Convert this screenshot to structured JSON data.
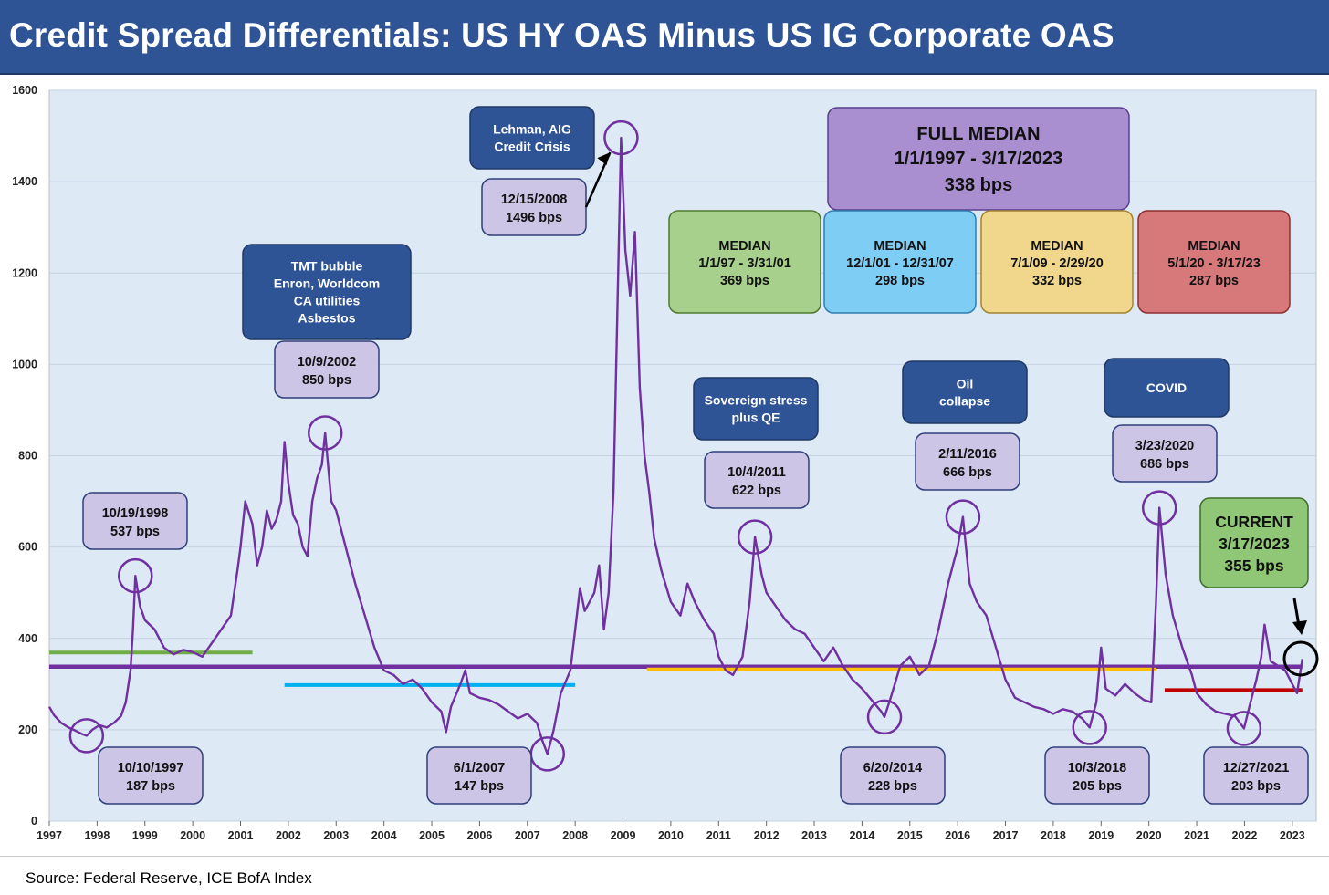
{
  "header": {
    "title": "Credit Spread Differentials: US HY OAS Minus US IG Corporate OAS"
  },
  "footer": {
    "source": "Source: Federal Reserve, ICE BofA Index"
  },
  "colors": {
    "series": "#7030a0",
    "plot_bg": "#dde9f5",
    "header_bg": "#2f5496",
    "median_full": "#7030a0",
    "median_1997_2001": "#70ad47",
    "median_2001_2007": "#00b0f0",
    "median_2009_2020": "#ffc000",
    "median_2020_2023": "#c00000"
  },
  "chart_data": {
    "type": "line",
    "title": "Credit Spread Differentials: US HY OAS Minus US IG Corporate OAS",
    "xlabel": "",
    "ylabel": "",
    "xlim": [
      1997,
      2023.5
    ],
    "ylim": [
      0,
      1600
    ],
    "yticks": [
      0,
      200,
      400,
      600,
      800,
      1000,
      1200,
      1400,
      1600
    ],
    "xticks": [
      1997,
      1998,
      1999,
      2000,
      2001,
      2002,
      2003,
      2004,
      2005,
      2006,
      2007,
      2008,
      2009,
      2010,
      2011,
      2012,
      2013,
      2014,
      2015,
      2016,
      2017,
      2018,
      2019,
      2020,
      2021,
      2022,
      2023
    ],
    "grid": true,
    "series": [
      {
        "name": "",
        "unit": "bps",
        "points": [
          [
            1997.0,
            250
          ],
          [
            1997.1,
            232
          ],
          [
            1997.25,
            215
          ],
          [
            1997.4,
            205
          ],
          [
            1997.55,
            198
          ],
          [
            1997.7,
            190
          ],
          [
            1997.78,
            187
          ],
          [
            1997.9,
            200
          ],
          [
            1998.05,
            210
          ],
          [
            1998.2,
            205
          ],
          [
            1998.35,
            215
          ],
          [
            1998.5,
            230
          ],
          [
            1998.6,
            260
          ],
          [
            1998.7,
            330
          ],
          [
            1998.75,
            420
          ],
          [
            1998.8,
            537
          ],
          [
            1998.9,
            470
          ],
          [
            1999.0,
            440
          ],
          [
            1999.2,
            420
          ],
          [
            1999.4,
            380
          ],
          [
            1999.6,
            365
          ],
          [
            1999.8,
            375
          ],
          [
            2000.0,
            370
          ],
          [
            2000.2,
            360
          ],
          [
            2000.4,
            390
          ],
          [
            2000.6,
            420
          ],
          [
            2000.8,
            450
          ],
          [
            2000.95,
            560
          ],
          [
            2001.0,
            600
          ],
          [
            2001.1,
            700
          ],
          [
            2001.25,
            650
          ],
          [
            2001.35,
            560
          ],
          [
            2001.45,
            600
          ],
          [
            2001.55,
            680
          ],
          [
            2001.65,
            640
          ],
          [
            2001.75,
            660
          ],
          [
            2001.85,
            700
          ],
          [
            2001.92,
            830
          ],
          [
            2002.0,
            740
          ],
          [
            2002.1,
            670
          ],
          [
            2002.2,
            650
          ],
          [
            2002.3,
            600
          ],
          [
            2002.4,
            580
          ],
          [
            2002.5,
            700
          ],
          [
            2002.6,
            750
          ],
          [
            2002.7,
            780
          ],
          [
            2002.77,
            850
          ],
          [
            2002.9,
            700
          ],
          [
            2003.0,
            680
          ],
          [
            2003.2,
            600
          ],
          [
            2003.4,
            520
          ],
          [
            2003.6,
            450
          ],
          [
            2003.8,
            380
          ],
          [
            2004.0,
            330
          ],
          [
            2004.2,
            320
          ],
          [
            2004.4,
            300
          ],
          [
            2004.6,
            310
          ],
          [
            2004.8,
            290
          ],
          [
            2005.0,
            260
          ],
          [
            2005.2,
            240
          ],
          [
            2005.3,
            195
          ],
          [
            2005.4,
            250
          ],
          [
            2005.6,
            300
          ],
          [
            2005.7,
            330
          ],
          [
            2005.8,
            280
          ],
          [
            2006.0,
            270
          ],
          [
            2006.2,
            265
          ],
          [
            2006.4,
            255
          ],
          [
            2006.6,
            240
          ],
          [
            2006.8,
            225
          ],
          [
            2007.0,
            235
          ],
          [
            2007.2,
            215
          ],
          [
            2007.3,
            180
          ],
          [
            2007.42,
            147
          ],
          [
            2007.55,
            200
          ],
          [
            2007.7,
            280
          ],
          [
            2007.9,
            330
          ],
          [
            2008.0,
            420
          ],
          [
            2008.1,
            510
          ],
          [
            2008.2,
            460
          ],
          [
            2008.3,
            480
          ],
          [
            2008.4,
            500
          ],
          [
            2008.5,
            560
          ],
          [
            2008.6,
            420
          ],
          [
            2008.7,
            500
          ],
          [
            2008.8,
            720
          ],
          [
            2008.88,
            1100
          ],
          [
            2008.96,
            1496
          ],
          [
            2009.05,
            1250
          ],
          [
            2009.15,
            1150
          ],
          [
            2009.25,
            1290
          ],
          [
            2009.35,
            950
          ],
          [
            2009.45,
            800
          ],
          [
            2009.55,
            720
          ],
          [
            2009.65,
            620
          ],
          [
            2009.8,
            550
          ],
          [
            2010.0,
            480
          ],
          [
            2010.2,
            450
          ],
          [
            2010.35,
            520
          ],
          [
            2010.5,
            480
          ],
          [
            2010.7,
            440
          ],
          [
            2010.9,
            410
          ],
          [
            2011.0,
            360
          ],
          [
            2011.15,
            330
          ],
          [
            2011.3,
            320
          ],
          [
            2011.5,
            360
          ],
          [
            2011.65,
            480
          ],
          [
            2011.76,
            622
          ],
          [
            2011.9,
            540
          ],
          [
            2012.0,
            500
          ],
          [
            2012.2,
            470
          ],
          [
            2012.4,
            440
          ],
          [
            2012.6,
            420
          ],
          [
            2012.8,
            410
          ],
          [
            2013.0,
            380
          ],
          [
            2013.2,
            350
          ],
          [
            2013.4,
            380
          ],
          [
            2013.6,
            340
          ],
          [
            2013.8,
            310
          ],
          [
            2014.0,
            290
          ],
          [
            2014.2,
            265
          ],
          [
            2014.4,
            240
          ],
          [
            2014.47,
            228
          ],
          [
            2014.6,
            270
          ],
          [
            2014.8,
            340
          ],
          [
            2015.0,
            360
          ],
          [
            2015.2,
            320
          ],
          [
            2015.4,
            340
          ],
          [
            2015.6,
            420
          ],
          [
            2015.8,
            520
          ],
          [
            2016.0,
            600
          ],
          [
            2016.11,
            666
          ],
          [
            2016.25,
            520
          ],
          [
            2016.4,
            480
          ],
          [
            2016.6,
            450
          ],
          [
            2016.8,
            380
          ],
          [
            2017.0,
            310
          ],
          [
            2017.2,
            270
          ],
          [
            2017.4,
            260
          ],
          [
            2017.6,
            250
          ],
          [
            2017.8,
            245
          ],
          [
            2018.0,
            235
          ],
          [
            2018.2,
            245
          ],
          [
            2018.4,
            240
          ],
          [
            2018.6,
            225
          ],
          [
            2018.76,
            205
          ],
          [
            2018.9,
            260
          ],
          [
            2019.0,
            380
          ],
          [
            2019.1,
            290
          ],
          [
            2019.3,
            275
          ],
          [
            2019.5,
            300
          ],
          [
            2019.7,
            280
          ],
          [
            2019.9,
            265
          ],
          [
            2020.05,
            260
          ],
          [
            2020.15,
            480
          ],
          [
            2020.22,
            686
          ],
          [
            2020.35,
            540
          ],
          [
            2020.5,
            450
          ],
          [
            2020.7,
            380
          ],
          [
            2020.9,
            320
          ],
          [
            2021.0,
            280
          ],
          [
            2021.2,
            255
          ],
          [
            2021.4,
            240
          ],
          [
            2021.6,
            235
          ],
          [
            2021.8,
            230
          ],
          [
            2021.99,
            203
          ],
          [
            2022.1,
            250
          ],
          [
            2022.25,
            310
          ],
          [
            2022.35,
            360
          ],
          [
            2022.42,
            430
          ],
          [
            2022.55,
            350
          ],
          [
            2022.7,
            340
          ],
          [
            2022.85,
            330
          ],
          [
            2023.0,
            300
          ],
          [
            2023.1,
            280
          ],
          [
            2023.21,
            355
          ]
        ]
      }
    ],
    "medians": [
      {
        "label": "FULL MEDIAN",
        "period": "1/1/1997 - 3/17/2023",
        "value_label": "338 bps",
        "value": 338,
        "x_start": 1997,
        "x_end": 2023.21,
        "color": "#7030a0"
      },
      {
        "label": "MEDIAN",
        "period": "1/1/97 - 3/31/01",
        "value_label": "369 bps",
        "value": 369,
        "x_start": 1997,
        "x_end": 2001.25,
        "color": "#70ad47"
      },
      {
        "label": "MEDIAN",
        "period": "12/1/01 - 12/31/07",
        "value_label": "298 bps",
        "value": 298,
        "x_start": 2001.92,
        "x_end": 2008.0,
        "color": "#00b0f0"
      },
      {
        "label": "MEDIAN",
        "period": "7/1/09 - 2/29/20",
        "value_label": "332 bps",
        "value": 332,
        "x_start": 2009.5,
        "x_end": 2020.16,
        "color": "#ffc000"
      },
      {
        "label": "MEDIAN",
        "period": "5/1/20 - 3/17/23",
        "value_label": "287 bps",
        "value": 287,
        "x_start": 2020.33,
        "x_end": 2023.21,
        "color": "#c00000"
      }
    ],
    "annotations": [
      {
        "date": "10/10/1997",
        "value_label": "187 bps",
        "x": 1997.78,
        "y": 187
      },
      {
        "date": "10/19/1998",
        "value_label": "537 bps",
        "x": 1998.8,
        "y": 537
      },
      {
        "date": "10/9/2002",
        "value_label": "850 bps",
        "x": 2002.77,
        "y": 850
      },
      {
        "date": "6/1/2007",
        "value_label": "147 bps",
        "x": 2007.42,
        "y": 147
      },
      {
        "date": "12/15/2008",
        "value_label": "1496 bps",
        "x": 2008.96,
        "y": 1496
      },
      {
        "date": "10/4/2011",
        "value_label": "622 bps",
        "x": 2011.76,
        "y": 622
      },
      {
        "date": "6/20/2014",
        "value_label": "228 bps",
        "x": 2014.47,
        "y": 228
      },
      {
        "date": "2/11/2016",
        "value_label": "666 bps",
        "x": 2016.11,
        "y": 666
      },
      {
        "date": "10/3/2018",
        "value_label": "205 bps",
        "x": 2018.76,
        "y": 205
      },
      {
        "date": "3/23/2020",
        "value_label": "686 bps",
        "x": 2020.22,
        "y": 686
      },
      {
        "date": "12/27/2021",
        "value_label": "203 bps",
        "x": 2021.99,
        "y": 203
      }
    ],
    "events": [
      {
        "lines": [
          "TMT bubble",
          "Enron, Worldcom",
          "CA utilities",
          "Asbestos"
        ]
      },
      {
        "lines": [
          "Lehman, AIG",
          "Credit Crisis"
        ]
      },
      {
        "lines": [
          "Sovereign stress",
          "plus QE"
        ]
      },
      {
        "lines": [
          "Oil",
          "collapse"
        ]
      },
      {
        "lines": [
          "COVID"
        ]
      }
    ],
    "current": {
      "label": "CURRENT",
      "date": "3/17/2023",
      "value_label": "355 bps",
      "x": 2023.21,
      "y": 355
    }
  }
}
